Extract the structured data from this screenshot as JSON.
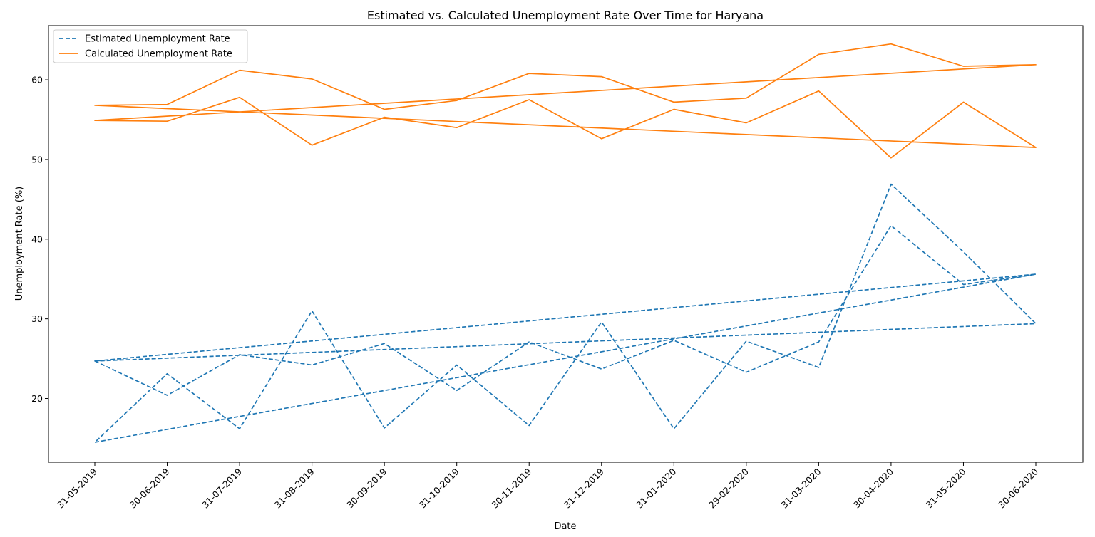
{
  "chart_data": {
    "type": "line",
    "title": "Estimated vs. Calculated Unemployment Rate Over Time for Haryana",
    "xlabel": "Date",
    "ylabel": "Unemployment Rate (%)",
    "categories": [
      "31-05-2019",
      "30-06-2019",
      "31-07-2019",
      "31-08-2019",
      "30-09-2019",
      "31-10-2019",
      "30-11-2019",
      "31-12-2019",
      "31-01-2020",
      "29-02-2020",
      "31-03-2020",
      "30-04-2020",
      "31-05-2020",
      "30-06-2020"
    ],
    "ylim": [
      12.0,
      66.8
    ],
    "yticks": [
      20,
      30,
      40,
      50,
      60
    ],
    "grid": false,
    "legend_position": "top-left",
    "series": [
      {
        "name": "Estimated Unemployment Rate",
        "color": "#1f77b4",
        "dash": "dashed",
        "points": [
          [
            "31-05-2019",
            24.7
          ],
          [
            "30-06-2019",
            20.4
          ],
          [
            "31-07-2019",
            25.5
          ],
          [
            "31-08-2019",
            24.2
          ],
          [
            "30-09-2019",
            26.9
          ],
          [
            "31-10-2019",
            21.0
          ],
          [
            "30-11-2019",
            27.1
          ],
          [
            "31-12-2019",
            23.7
          ],
          [
            "31-01-2020",
            27.3
          ],
          [
            "29-02-2020",
            23.3
          ],
          [
            "31-03-2020",
            27.1
          ],
          [
            "30-04-2020",
            41.7
          ],
          [
            "31-05-2020",
            34.3
          ],
          [
            "30-06-2020",
            35.6
          ],
          [
            "31-05-2019",
            14.5
          ],
          [
            "30-06-2019",
            23.1
          ],
          [
            "31-07-2019",
            16.2
          ],
          [
            "31-08-2019",
            31.0
          ],
          [
            "30-09-2019",
            16.3
          ],
          [
            "31-10-2019",
            24.2
          ],
          [
            "30-11-2019",
            16.6
          ],
          [
            "31-12-2019",
            29.6
          ],
          [
            "31-01-2020",
            16.2
          ],
          [
            "29-02-2020",
            27.2
          ],
          [
            "31-03-2020",
            23.9
          ],
          [
            "30-04-2020",
            46.9
          ],
          [
            "31-05-2020",
            38.4
          ],
          [
            "30-06-2020",
            29.4
          ],
          [
            "31-05-2019",
            24.7
          ],
          [
            "30-06-2020",
            35.6
          ]
        ]
      },
      {
        "name": "Calculated Unemployment Rate",
        "color": "#ff7f0e",
        "dash": "solid",
        "points": [
          [
            "31-05-2019",
            56.8
          ],
          [
            "30-06-2019",
            56.9
          ],
          [
            "31-07-2019",
            61.2
          ],
          [
            "31-08-2019",
            60.1
          ],
          [
            "30-09-2019",
            56.3
          ],
          [
            "31-10-2019",
            57.4
          ],
          [
            "30-11-2019",
            60.8
          ],
          [
            "31-12-2019",
            60.4
          ],
          [
            "31-01-2020",
            57.2
          ],
          [
            "29-02-2020",
            57.7
          ],
          [
            "31-03-2020",
            63.2
          ],
          [
            "30-04-2020",
            64.5
          ],
          [
            "31-05-2020",
            61.7
          ],
          [
            "30-06-2020",
            61.9
          ],
          [
            "31-05-2019",
            54.9
          ],
          [
            "30-06-2019",
            54.8
          ],
          [
            "31-07-2019",
            57.8
          ],
          [
            "31-08-2019",
            51.8
          ],
          [
            "30-09-2019",
            55.3
          ],
          [
            "31-10-2019",
            54.0
          ],
          [
            "30-11-2019",
            57.5
          ],
          [
            "31-12-2019",
            52.6
          ],
          [
            "31-01-2020",
            56.3
          ],
          [
            "29-02-2020",
            54.6
          ],
          [
            "31-03-2020",
            58.6
          ],
          [
            "30-04-2020",
            50.2
          ],
          [
            "31-05-2020",
            57.2
          ],
          [
            "30-06-2020",
            51.5
          ],
          [
            "31-05-2019",
            56.8
          ],
          [
            "30-06-2020",
            51.5
          ]
        ]
      }
    ]
  }
}
